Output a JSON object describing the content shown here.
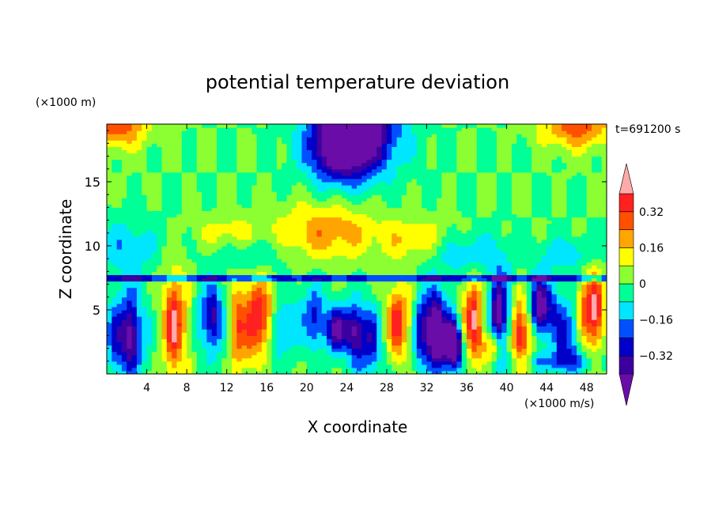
{
  "chart_data": {
    "type": "heatmap",
    "title": "potential temperature deviation",
    "xlabel": "X coordinate",
    "ylabel": "Z coordinate",
    "x_unit": "(×1000 m/s)",
    "y_unit": "(×1000 m)",
    "time_label": "t=691200 s",
    "x_range": [
      0,
      50
    ],
    "y_range": [
      0,
      19.5
    ],
    "x_ticks": [
      4,
      8,
      12,
      16,
      20,
      24,
      28,
      32,
      36,
      40,
      44,
      48
    ],
    "y_ticks": [
      5,
      10,
      15
    ],
    "colorbar": {
      "levels": [
        -0.4,
        -0.32,
        -0.24,
        -0.16,
        -0.08,
        0,
        0.08,
        0.16,
        0.24,
        0.32,
        0.4
      ],
      "tick_labels": [
        "0.32",
        "0.16",
        "0",
        "−0.16",
        "−0.32"
      ],
      "tick_values": [
        0.32,
        0.16,
        0,
        -0.16,
        -0.32
      ],
      "colors": [
        "#6a0ca8",
        "#3c00a0",
        "#0000c8",
        "#0050ff",
        "#00e6ff",
        "#00ff96",
        "#8cff32",
        "#ffff00",
        "#ffa500",
        "#ff5000",
        "#ff2020",
        "#ffaaaa"
      ]
    }
  }
}
